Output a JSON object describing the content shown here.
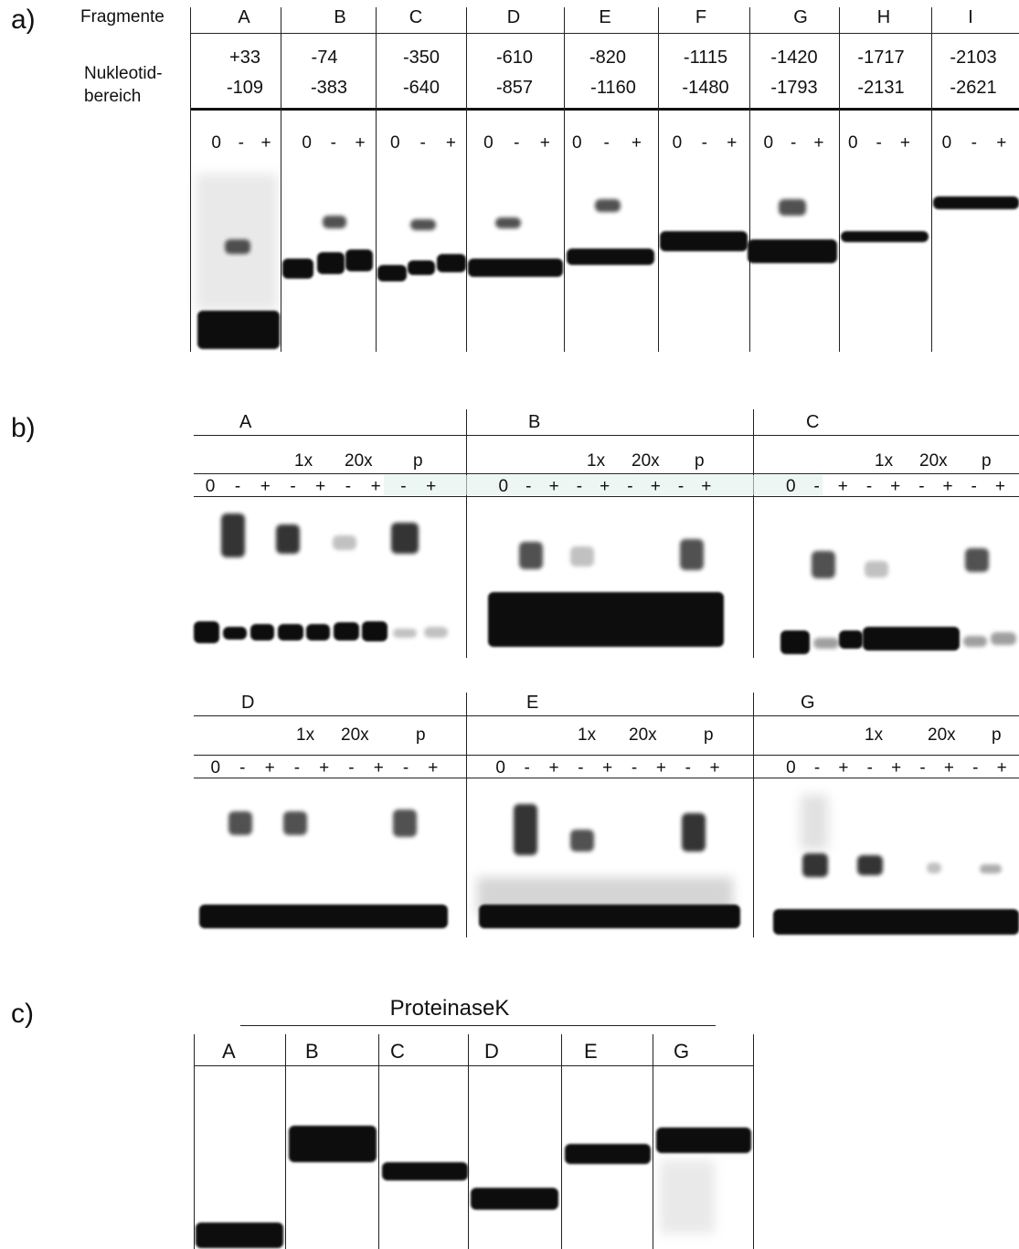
{
  "panel_a": {
    "label": "a)",
    "fragmente_label": "Fragmente",
    "nukleotid_label_1": "Nukleotid-",
    "nukleotid_label_2": "bereich",
    "columns": [
      {
        "name": "A",
        "start": "+33",
        "end": "-109"
      },
      {
        "name": "B",
        "start": "-74",
        "end": "-383"
      },
      {
        "name": "C",
        "start": "-350",
        "end": "-640"
      },
      {
        "name": "D",
        "start": "-610",
        "end": "-857"
      },
      {
        "name": "E",
        "start": "-820",
        "end": "-1160"
      },
      {
        "name": "F",
        "start": "-1115",
        "end": "-1480"
      },
      {
        "name": "G",
        "start": "-1420",
        "end": "-1793"
      },
      {
        "name": "H",
        "start": "-1717",
        "end": "-2131"
      },
      {
        "name": "I",
        "start": "-2103",
        "end": "-2621"
      }
    ],
    "lanes": [
      "0",
      "-",
      "+"
    ]
  },
  "panel_b": {
    "label": "b)",
    "conditions": [
      "1x",
      "20x",
      "p"
    ],
    "lane_signs_A": [
      "0",
      "-",
      "+",
      "-",
      "+",
      "-",
      "+",
      "-",
      "+"
    ],
    "lane_signs_B": [
      "0",
      "-",
      "+",
      "-",
      "+",
      "-",
      "+",
      "-",
      "+"
    ],
    "lane_signs_C": [
      "0",
      "-",
      "+",
      "-",
      "+",
      "-",
      "+",
      "-",
      "+"
    ],
    "lane_signs_D": [
      "0",
      "-",
      "+",
      "-",
      "+",
      "-",
      "+",
      "-",
      "+"
    ],
    "lane_signs_E": [
      "0",
      "-",
      "+",
      "-",
      "+",
      "-",
      "+",
      "-",
      "+"
    ],
    "lane_signs_G": [
      "0",
      "-",
      "+",
      "-",
      "+",
      "-",
      "+",
      "-",
      "+"
    ],
    "row1": [
      "A",
      "B",
      "C"
    ],
    "row2": [
      "D",
      "E",
      "G"
    ]
  },
  "panel_c": {
    "label": "c)",
    "title": "ProteinaseK",
    "columns": [
      "A",
      "B",
      "C",
      "D",
      "E",
      "G"
    ]
  }
}
